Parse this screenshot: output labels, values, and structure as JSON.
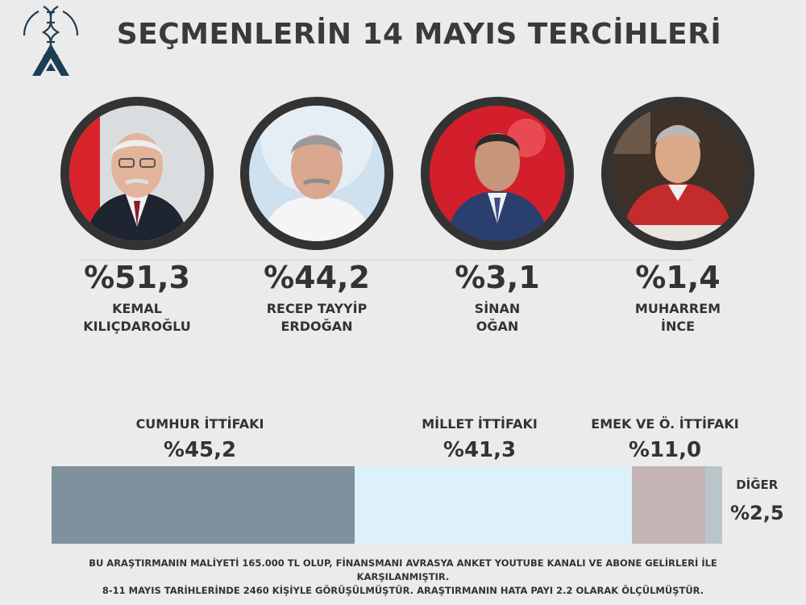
{
  "title": "SEÇMENLERİN 14 MAYIS TERCİHLERİ",
  "candidates": [
    {
      "pct_label": "%51,3",
      "name_line1": "KEMAL",
      "name_line2": "KILIÇDAROĞLU"
    },
    {
      "pct_label": "%44,2",
      "name_line1": "RECEP TAYYİP",
      "name_line2": "ERDOĞAN"
    },
    {
      "pct_label": "%3,1",
      "name_line1": "SİNAN",
      "name_line2": "OĞAN"
    },
    {
      "pct_label": "%1,4",
      "name_line1": "MUHARREM",
      "name_line2": "İNCE"
    }
  ],
  "alliances": [
    {
      "label": "CUMHUR İTTİFAKI",
      "value_label": "%45,2"
    },
    {
      "label": "MİLLET İTTİFAKI",
      "value_label": "%41,3"
    },
    {
      "label": "EMEK VE Ö. İTTİFAKI",
      "value_label": "%11,0"
    },
    {
      "label": "DİĞER",
      "value_label": "%2,5"
    }
  ],
  "footer": {
    "line1": "BU ARAŞTIRMANIN MALİYETİ 165.000 TL OLUP, FİNANSMANI AVRASYA ANKET YOUTUBE KANALI VE ABONE GELİRLERİ İLE KARŞILANMIŞTIR.",
    "line2": "8-11 MAYIS TARİHLERİNDE 2460 KİŞİYLE GÖRÜŞÜLMÜŞTÜR. ARAŞTIRMANIN HATA PAYI 2.2 OLARAK ÖLÇÜLMÜŞTÜR."
  },
  "colors": {
    "cumhur": "#7e919d",
    "millet": "#ddf1fa",
    "emek": "#c4b4b6",
    "diger": "#b9c5ca",
    "logo": "#1e3c52"
  },
  "chart_data": [
    {
      "type": "bar",
      "categories": [
        "KEMAL KILIÇDAROĞLU",
        "RECEP TAYYİP ERDOĞAN",
        "SİNAN OĞAN",
        "MUHARREM İNCE"
      ],
      "values": [
        51.3,
        44.2,
        3.1,
        1.4
      ]
    },
    {
      "type": "bar",
      "stacked": true,
      "orientation": "horizontal",
      "categories": [
        "CUMHUR İTTİFAKI",
        "MİLLET İTTİFAKI",
        "EMEK VE Ö. İTTİFAKI",
        "DİĞER"
      ],
      "values": [
        45.2,
        41.3,
        11.0,
        2.5
      ]
    }
  ]
}
